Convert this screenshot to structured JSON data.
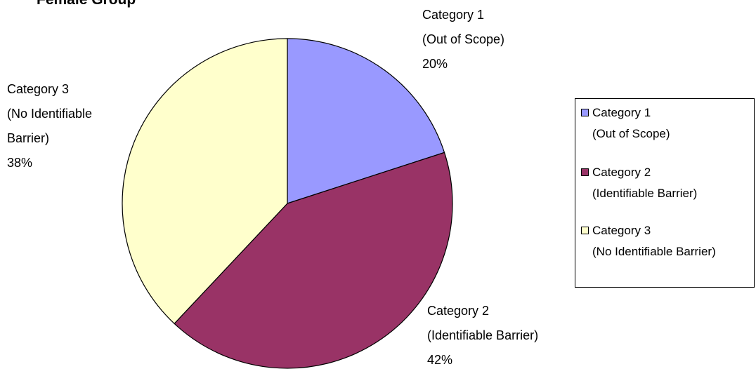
{
  "chart_data": {
    "type": "pie",
    "title": "Female Group",
    "categories": [
      "Category 1 (Out of Scope)",
      "Category 2 (Identifiable Barrier)",
      "Category 3 (No Identifiable Barrier)"
    ],
    "values": [
      20,
      42,
      38
    ],
    "value_labels": [
      "20%",
      "42%",
      "38%"
    ],
    "colors": [
      "#9999ff",
      "#993366",
      "#ffffcc"
    ],
    "legend": "right"
  }
}
